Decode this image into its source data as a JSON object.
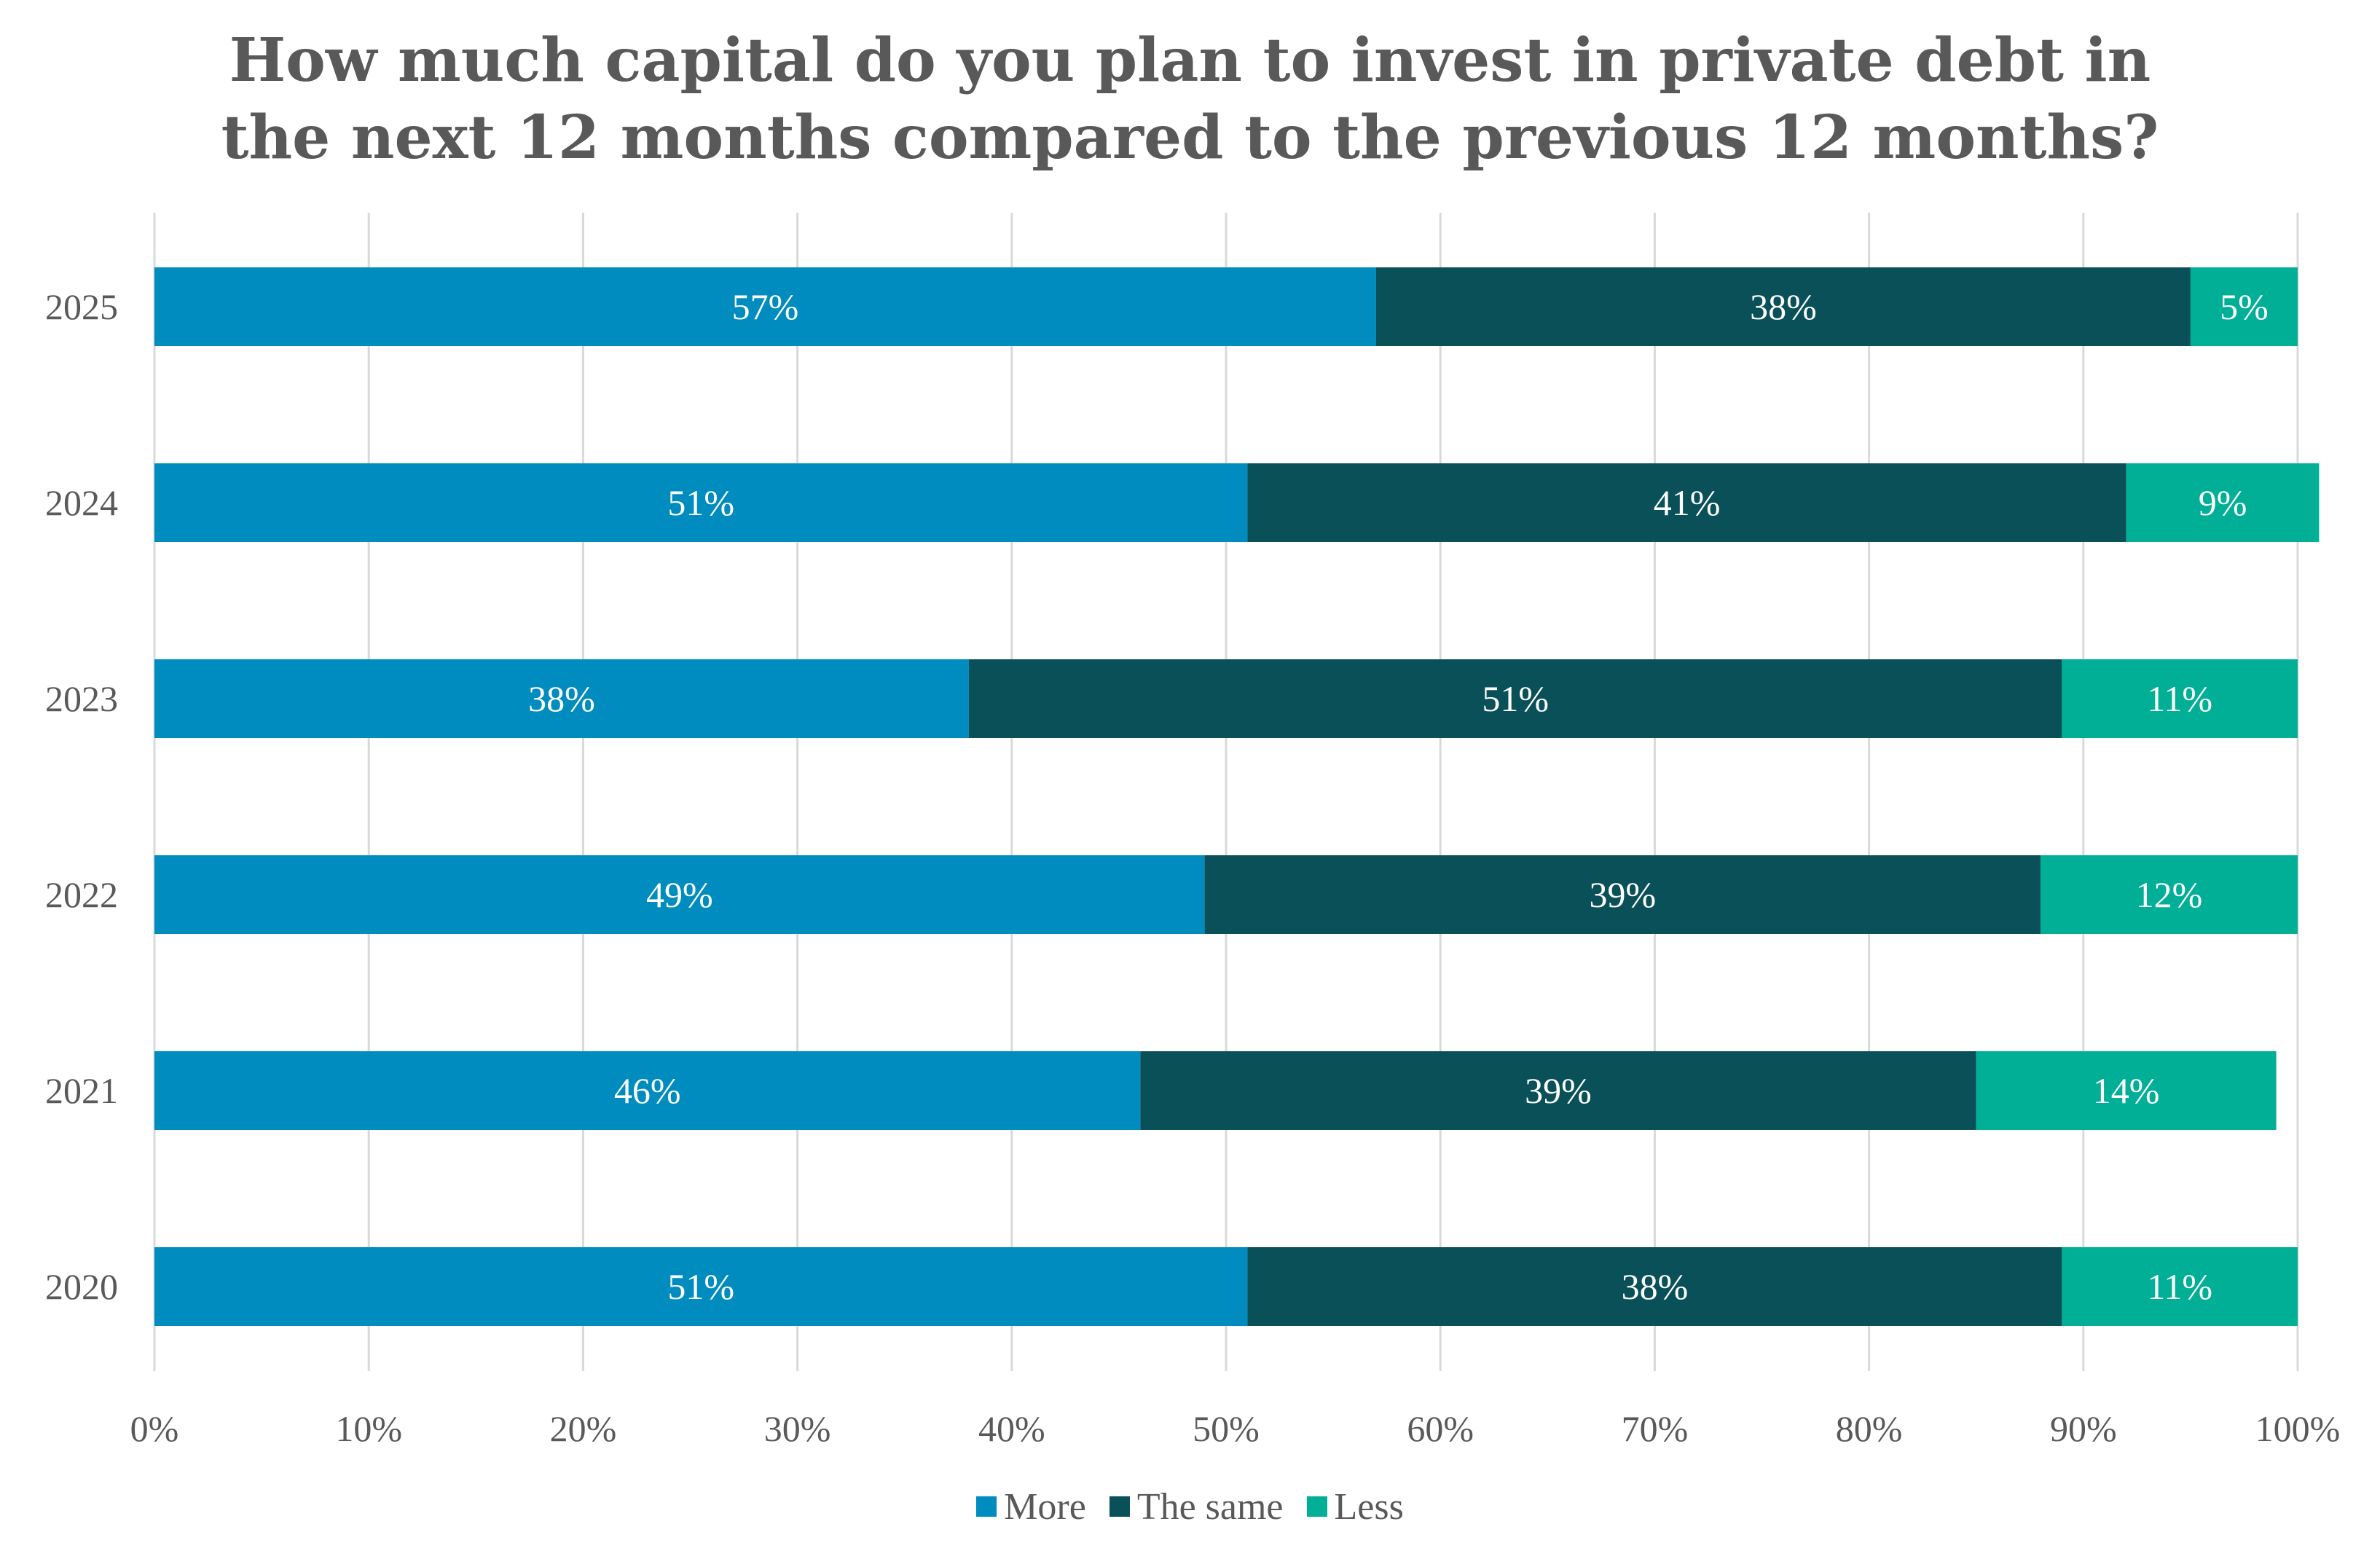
{
  "chart_data": {
    "type": "bar",
    "orientation": "horizontal",
    "stacked": true,
    "title": "How much capital do you plan to invest in private debt in the next 12 months compared to the previous 12 months?",
    "title_lines": [
      "How much capital do you plan to invest in private debt in",
      "the next 12 months compared to the previous 12 months?"
    ],
    "xlabel": "",
    "ylabel": "",
    "xlim": [
      0,
      100
    ],
    "x_ticks": [
      "0%",
      "10%",
      "20%",
      "30%",
      "40%",
      "50%",
      "60%",
      "70%",
      "80%",
      "90%",
      "100%"
    ],
    "categories": [
      "2025",
      "2024",
      "2023",
      "2022",
      "2021",
      "2020"
    ],
    "series": [
      {
        "name": "More",
        "color": "#008CBE",
        "values": [
          57,
          51,
          38,
          49,
          46,
          51
        ],
        "labels": [
          "57%",
          "51%",
          "38%",
          "49%",
          "46%",
          "51%"
        ]
      },
      {
        "name": "The same",
        "color": "#0A5058",
        "values": [
          38,
          41,
          51,
          39,
          39,
          38
        ],
        "labels": [
          "38%",
          "41%",
          "51%",
          "39%",
          "39%",
          "38%"
        ]
      },
      {
        "name": "Less",
        "color": "#00AF96",
        "values": [
          5,
          9,
          11,
          12,
          14,
          11
        ],
        "labels": [
          "5%",
          "9%",
          "11%",
          "12%",
          "14%",
          "11%"
        ]
      }
    ],
    "grid": true,
    "legend_position": "bottom"
  }
}
